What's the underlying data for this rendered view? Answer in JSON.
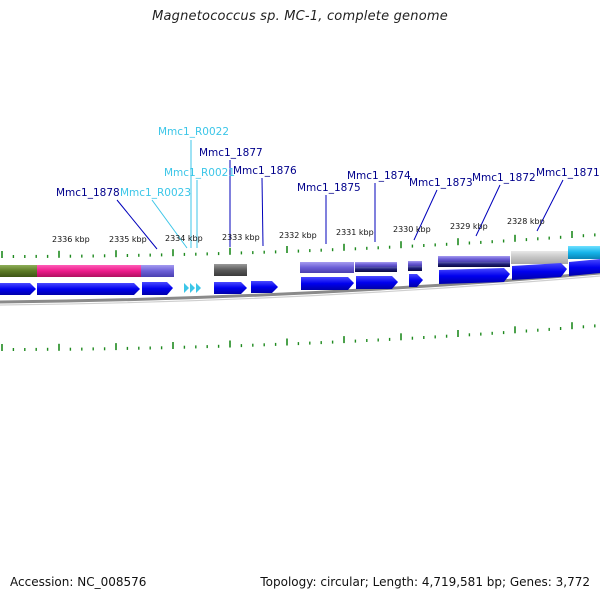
{
  "title": "Magnetococcus sp. MC-1, complete genome",
  "footer": {
    "accession": "Accession: NC_008576",
    "summary": "Topology: circular; Length: 4,719,581 bp; Genes: 3,772"
  },
  "colors": {
    "tick": "#1f8a1f",
    "cds_blue": "#0000ee",
    "rna_cyan": "#3cc6e8",
    "gene_label": "#00008b",
    "rna_label": "#3cc6e8",
    "backbone": "#888888"
  },
  "chart_data": {
    "type": "genome-map",
    "topology": "circular",
    "scale_labels": [
      {
        "kbp": 2336,
        "label": "2336 kbp"
      },
      {
        "kbp": 2335,
        "label": "2335 kbp"
      },
      {
        "kbp": 2334,
        "label": "2334 kbp"
      },
      {
        "kbp": 2333,
        "label": "2333 kbp"
      },
      {
        "kbp": 2332,
        "label": "2332 kbp"
      },
      {
        "kbp": 2331,
        "label": "2331 kbp"
      },
      {
        "kbp": 2330,
        "label": "2330 kbp"
      },
      {
        "kbp": 2329,
        "label": "2329 kbp"
      },
      {
        "kbp": 2328,
        "label": "2328 kbp"
      }
    ],
    "features": [
      {
        "id": "Mmc1_1878",
        "type": "gene"
      },
      {
        "id": "Mmc1_R0023",
        "type": "rna"
      },
      {
        "id": "Mmc1_R0022",
        "type": "rna"
      },
      {
        "id": "Mmc1_R0021",
        "type": "rna"
      },
      {
        "id": "Mmc1_1877",
        "type": "gene"
      },
      {
        "id": "Mmc1_1876",
        "type": "gene"
      },
      {
        "id": "Mmc1_1875",
        "type": "gene"
      },
      {
        "id": "Mmc1_1874",
        "type": "gene"
      },
      {
        "id": "Mmc1_1873",
        "type": "gene"
      },
      {
        "id": "Mmc1_1872",
        "type": "gene"
      },
      {
        "id": "Mmc1_1871",
        "type": "gene"
      }
    ]
  }
}
